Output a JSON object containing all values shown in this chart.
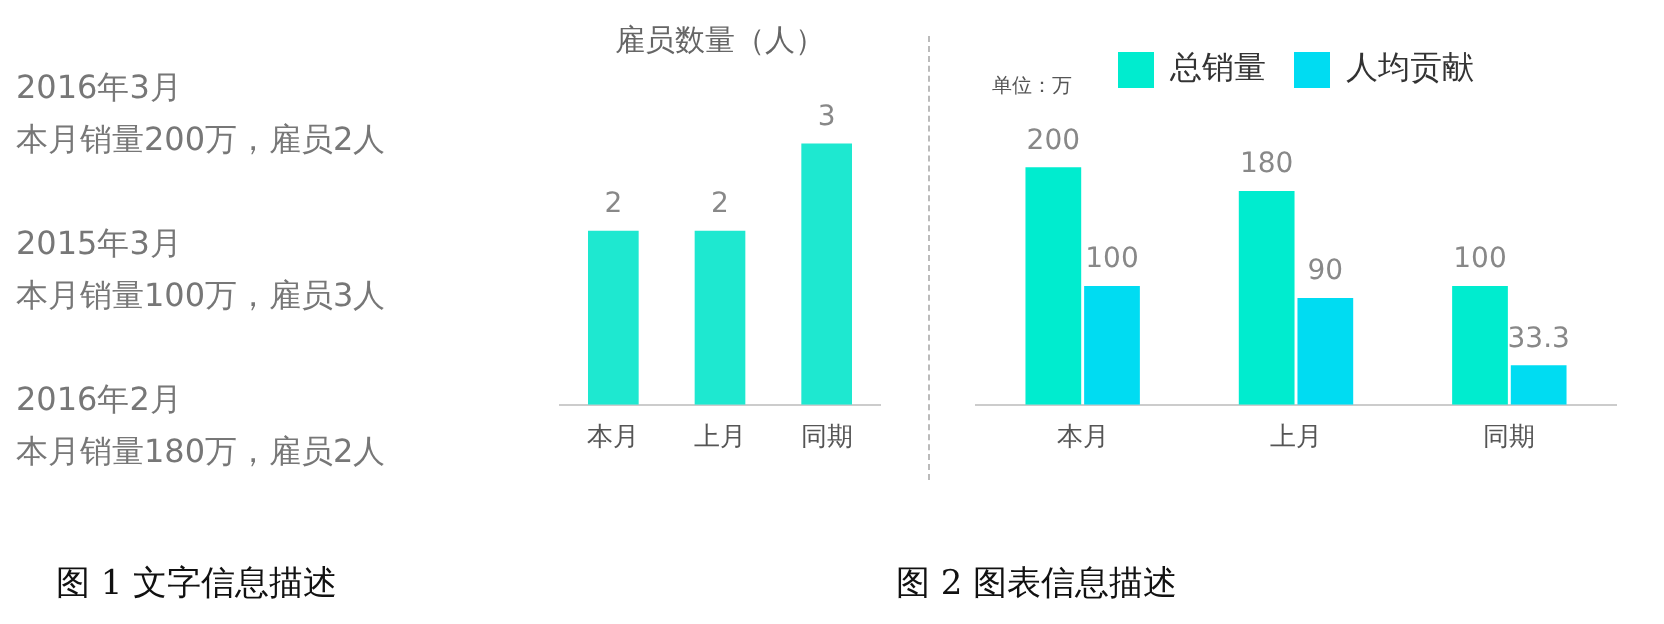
{
  "chart_data": [
    {
      "type": "other",
      "annotations": [
        "2016年3月",
        "本月销量200万，雇员2人",
        "2015年3月",
        "本月销量100万，雇员3人",
        "2016年2月",
        "本月销量180万，雇员2人",
        "图 1 文字信息描述"
      ]
    },
    {
      "type": "bar",
      "title": "雇员数量（人）",
      "categories": [
        "本月",
        "上月",
        "同期"
      ],
      "values": [
        2,
        2,
        3
      ],
      "color": "#1ee8d0",
      "data_labels": true,
      "grid": false,
      "legend": false
    },
    {
      "type": "bar",
      "categories": [
        "本月",
        "上月",
        "同期"
      ],
      "series": [
        {
          "name": "总销量",
          "color": "#00eccf",
          "values": [
            200,
            180,
            100
          ]
        },
        {
          "name": "人均贡献",
          "color": "#00dcf2",
          "values": [
            100,
            90,
            33.3
          ]
        }
      ],
      "data_labels": true,
      "grid": false,
      "legend": "top",
      "annotations": [
        "单位：万",
        "图 2 图表信息描述"
      ]
    }
  ]
}
